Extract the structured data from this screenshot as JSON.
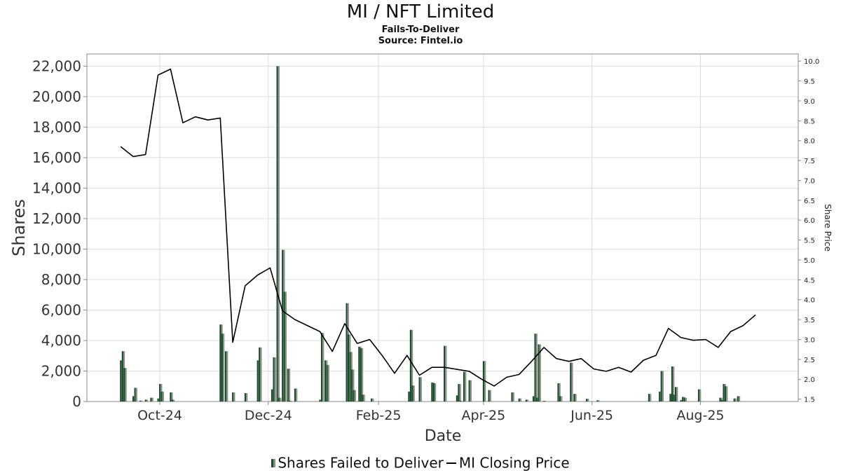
{
  "header": {
    "title": "MI / NFT Limited",
    "subtitle": "Fails-To-Deliver",
    "source": "Source: Fintel.io"
  },
  "legend": {
    "bars_label": "Shares Failed to Deliver",
    "line_label": "MI Closing Price"
  },
  "colors": {
    "bar_primary": "#1b4d2b",
    "bar_secondary": "#8a8f89",
    "line": "#000000",
    "grid": "#dddddd",
    "axis": "#888888"
  },
  "chart_data": {
    "type": "bar",
    "title": "MI / NFT Limited",
    "subtitle": "Fails-To-Deliver",
    "xlabel": "Date",
    "ylabel": "Shares",
    "y2label": "Share Price",
    "x_ticks": [
      "Oct-24",
      "Dec-24",
      "Feb-25",
      "Apr-25",
      "Jun-25",
      "Aug-25"
    ],
    "x_range": [
      "2024-08-21",
      "2025-09-25"
    ],
    "y_ticks": [
      0,
      2000,
      4000,
      6000,
      8000,
      10000,
      12000,
      14000,
      16000,
      18000,
      20000,
      22000
    ],
    "y_tick_labels": [
      "0",
      "2,000",
      "4,000",
      "6,000",
      "8,000",
      "10,000",
      "12,000",
      "14,000",
      "16,000",
      "18,000",
      "20,000",
      "22,000"
    ],
    "ylim": [
      0,
      22800
    ],
    "y2_ticks": [
      1.5,
      2.0,
      2.5,
      3.0,
      3.5,
      4.0,
      4.5,
      5.0,
      5.5,
      6.0,
      6.5,
      7.0,
      7.5,
      8.0,
      8.5,
      9.0,
      9.5,
      10.0
    ],
    "y2_tick_labels": [
      "1.5",
      "2.0",
      "2.5",
      "3.0",
      "3.5",
      "4.0",
      "4.5",
      "5.0",
      "5.5",
      "6.0",
      "6.5",
      "7.0",
      "7.5",
      "8.0",
      "8.5",
      "9.0",
      "9.5",
      "10.0"
    ],
    "y2lim": [
      1.44,
      10.18
    ],
    "grid": true,
    "legend_position": "bottom",
    "series": [
      {
        "name": "Shares Failed to Deliver",
        "type": "bar",
        "axis": "left",
        "points": [
          {
            "date": "2024-09-09",
            "value": 2700
          },
          {
            "date": "2024-09-10",
            "value": 3300
          },
          {
            "date": "2024-09-11",
            "value": 2200
          },
          {
            "date": "2024-09-16",
            "value": 350
          },
          {
            "date": "2024-09-17",
            "value": 900
          },
          {
            "date": "2024-09-20",
            "value": 60
          },
          {
            "date": "2024-09-23",
            "value": 120
          },
          {
            "date": "2024-09-26",
            "value": 250
          },
          {
            "date": "2024-09-30",
            "value": 200
          },
          {
            "date": "2024-10-01",
            "value": 1150
          },
          {
            "date": "2024-10-02",
            "value": 650
          },
          {
            "date": "2024-10-07",
            "value": 600
          },
          {
            "date": "2024-10-08",
            "value": 120
          },
          {
            "date": "2024-11-04",
            "value": 5050
          },
          {
            "date": "2024-11-05",
            "value": 4450
          },
          {
            "date": "2024-11-07",
            "value": 3300
          },
          {
            "date": "2024-11-11",
            "value": 600
          },
          {
            "date": "2024-11-18",
            "value": 550
          },
          {
            "date": "2024-11-25",
            "value": 2700
          },
          {
            "date": "2024-11-26",
            "value": 3550
          },
          {
            "date": "2024-12-03",
            "value": 800
          },
          {
            "date": "2024-12-04",
            "value": 2900
          },
          {
            "date": "2024-12-06",
            "value": 22000
          },
          {
            "date": "2024-12-07",
            "value": 250
          },
          {
            "date": "2024-12-09",
            "value": 9950
          },
          {
            "date": "2024-12-10",
            "value": 7200
          },
          {
            "date": "2024-12-12",
            "value": 2150
          },
          {
            "date": "2024-12-13",
            "value": 50
          },
          {
            "date": "2024-12-16",
            "value": 850
          },
          {
            "date": "2024-12-30",
            "value": 120
          },
          {
            "date": "2024-12-31",
            "value": 4500
          },
          {
            "date": "2025-01-02",
            "value": 2700
          },
          {
            "date": "2025-01-03",
            "value": 2400
          },
          {
            "date": "2025-01-14",
            "value": 6450
          },
          {
            "date": "2025-01-15",
            "value": 4400
          },
          {
            "date": "2025-01-16",
            "value": 3250
          },
          {
            "date": "2025-01-17",
            "value": 2100
          },
          {
            "date": "2025-01-18",
            "value": 750
          },
          {
            "date": "2025-01-21",
            "value": 3600
          },
          {
            "date": "2025-01-22",
            "value": 3500
          },
          {
            "date": "2025-01-23",
            "value": 450
          },
          {
            "date": "2025-01-28",
            "value": 200
          },
          {
            "date": "2025-02-18",
            "value": 650
          },
          {
            "date": "2025-02-19",
            "value": 4700
          },
          {
            "date": "2025-02-20",
            "value": 1050
          },
          {
            "date": "2025-02-24",
            "value": 1600
          },
          {
            "date": "2025-03-03",
            "value": 1250
          },
          {
            "date": "2025-03-04",
            "value": 1200
          },
          {
            "date": "2025-03-10",
            "value": 3650
          },
          {
            "date": "2025-03-17",
            "value": 400
          },
          {
            "date": "2025-03-18",
            "value": 1150
          },
          {
            "date": "2025-03-19",
            "value": 50
          },
          {
            "date": "2025-03-21",
            "value": 1950
          },
          {
            "date": "2025-03-24",
            "value": 1400
          },
          {
            "date": "2025-04-01",
            "value": 2650
          },
          {
            "date": "2025-04-04",
            "value": 750
          },
          {
            "date": "2025-04-17",
            "value": 600
          },
          {
            "date": "2025-04-21",
            "value": 200
          },
          {
            "date": "2025-04-25",
            "value": 120
          },
          {
            "date": "2025-04-29",
            "value": 350
          },
          {
            "date": "2025-04-30",
            "value": 4450
          },
          {
            "date": "2025-05-01",
            "value": 250
          },
          {
            "date": "2025-05-02",
            "value": 3750
          },
          {
            "date": "2025-05-05",
            "value": 50
          },
          {
            "date": "2025-05-13",
            "value": 1200
          },
          {
            "date": "2025-05-14",
            "value": 350
          },
          {
            "date": "2025-05-20",
            "value": 2550
          },
          {
            "date": "2025-05-22",
            "value": 500
          },
          {
            "date": "2025-05-29",
            "value": 180
          },
          {
            "date": "2025-06-04",
            "value": 80
          },
          {
            "date": "2025-07-03",
            "value": 500
          },
          {
            "date": "2025-07-09",
            "value": 650
          },
          {
            "date": "2025-07-10",
            "value": 2000
          },
          {
            "date": "2025-07-15",
            "value": 500
          },
          {
            "date": "2025-07-16",
            "value": 2300
          },
          {
            "date": "2025-07-17",
            "value": 450
          },
          {
            "date": "2025-07-18",
            "value": 950
          },
          {
            "date": "2025-07-21",
            "value": 100
          },
          {
            "date": "2025-07-22",
            "value": 300
          },
          {
            "date": "2025-07-23",
            "value": 250
          },
          {
            "date": "2025-07-31",
            "value": 800
          },
          {
            "date": "2025-08-12",
            "value": 250
          },
          {
            "date": "2025-08-13",
            "value": 100
          },
          {
            "date": "2025-08-14",
            "value": 1150
          },
          {
            "date": "2025-08-15",
            "value": 1000
          },
          {
            "date": "2025-08-20",
            "value": 200
          },
          {
            "date": "2025-08-22",
            "value": 350
          }
        ]
      },
      {
        "name": "MI Closing Price",
        "type": "line",
        "axis": "right",
        "points": [
          {
            "date": "2024-09-09",
            "value": 7.85
          },
          {
            "date": "2024-09-16",
            "value": 7.6
          },
          {
            "date": "2024-09-23",
            "value": 7.65
          },
          {
            "date": "2024-09-30",
            "value": 9.65
          },
          {
            "date": "2024-10-07",
            "value": 9.8
          },
          {
            "date": "2024-10-14",
            "value": 8.45
          },
          {
            "date": "2024-10-21",
            "value": 8.6
          },
          {
            "date": "2024-10-28",
            "value": 8.52
          },
          {
            "date": "2024-11-04",
            "value": 8.57
          },
          {
            "date": "2024-11-11",
            "value": 2.93
          },
          {
            "date": "2024-11-18",
            "value": 4.35
          },
          {
            "date": "2024-11-25",
            "value": 4.62
          },
          {
            "date": "2024-12-02",
            "value": 4.8
          },
          {
            "date": "2024-12-09",
            "value": 3.72
          },
          {
            "date": "2024-12-16",
            "value": 3.5
          },
          {
            "date": "2024-12-23",
            "value": 3.35
          },
          {
            "date": "2024-12-30",
            "value": 3.2
          },
          {
            "date": "2025-01-06",
            "value": 2.7
          },
          {
            "date": "2025-01-13",
            "value": 3.4
          },
          {
            "date": "2025-01-20",
            "value": 2.9
          },
          {
            "date": "2025-01-27",
            "value": 3.0
          },
          {
            "date": "2025-02-03",
            "value": 2.6
          },
          {
            "date": "2025-02-10",
            "value": 2.15
          },
          {
            "date": "2025-02-17",
            "value": 2.6
          },
          {
            "date": "2025-02-24",
            "value": 2.1
          },
          {
            "date": "2025-03-03",
            "value": 2.3
          },
          {
            "date": "2025-03-10",
            "value": 2.3
          },
          {
            "date": "2025-03-24",
            "value": 2.2
          },
          {
            "date": "2025-03-31",
            "value": 2.0
          },
          {
            "date": "2025-04-07",
            "value": 1.83
          },
          {
            "date": "2025-04-14",
            "value": 2.05
          },
          {
            "date": "2025-04-21",
            "value": 2.12
          },
          {
            "date": "2025-04-28",
            "value": 2.45
          },
          {
            "date": "2025-05-05",
            "value": 2.8
          },
          {
            "date": "2025-05-12",
            "value": 2.52
          },
          {
            "date": "2025-05-19",
            "value": 2.45
          },
          {
            "date": "2025-05-26",
            "value": 2.52
          },
          {
            "date": "2025-06-02",
            "value": 2.26
          },
          {
            "date": "2025-06-09",
            "value": 2.2
          },
          {
            "date": "2025-06-16",
            "value": 2.3
          },
          {
            "date": "2025-06-23",
            "value": 2.18
          },
          {
            "date": "2025-06-30",
            "value": 2.48
          },
          {
            "date": "2025-07-07",
            "value": 2.6
          },
          {
            "date": "2025-07-14",
            "value": 3.28
          },
          {
            "date": "2025-07-21",
            "value": 3.05
          },
          {
            "date": "2025-07-28",
            "value": 2.98
          },
          {
            "date": "2025-08-04",
            "value": 3.0
          },
          {
            "date": "2025-08-11",
            "value": 2.8
          },
          {
            "date": "2025-08-18",
            "value": 3.2
          },
          {
            "date": "2025-08-25",
            "value": 3.35
          },
          {
            "date": "2025-09-01",
            "value": 3.62
          }
        ]
      }
    ]
  }
}
